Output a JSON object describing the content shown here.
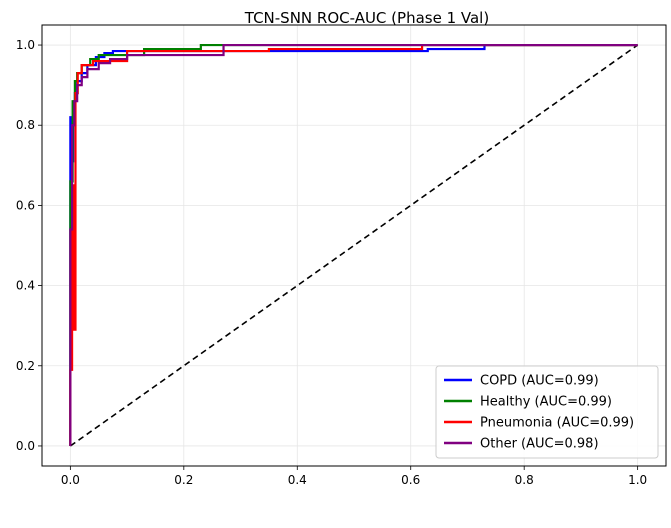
{
  "chart_data": {
    "type": "line",
    "title": "TCN-SNN ROC-AUC (Phase 1 Val)",
    "xlabel": "",
    "ylabel": "",
    "xlim": [
      -0.05,
      1.05
    ],
    "ylim": [
      -0.05,
      1.05
    ],
    "grid": true,
    "legend_position": "bottom-right",
    "x_ticks": [
      0.0,
      0.2,
      0.4,
      0.6,
      0.8,
      1.0
    ],
    "y_ticks": [
      0.0,
      0.2,
      0.4,
      0.6,
      0.8,
      1.0
    ],
    "x_tick_labels": [
      "0.0",
      "0.2",
      "0.4",
      "0.6",
      "0.8",
      "1.0"
    ],
    "y_tick_labels": [
      "0.0",
      "0.2",
      "0.4",
      "0.6",
      "0.8",
      "1.0"
    ],
    "series": [
      {
        "name": "COPD (AUC=0.99)",
        "color": "#0000ff",
        "x": [
          0,
          0,
          0.003,
          0.003,
          0.005,
          0.005,
          0.008,
          0.008,
          0.012,
          0.012,
          0.02,
          0.02,
          0.03,
          0.03,
          0.045,
          0.045,
          0.06,
          0.06,
          0.075,
          0.075,
          0.63,
          0.63,
          0.73,
          0.73,
          1.0
        ],
        "y": [
          0,
          0.82,
          0.82,
          0.71,
          0.71,
          0.83,
          0.83,
          0.88,
          0.88,
          0.91,
          0.91,
          0.93,
          0.93,
          0.95,
          0.95,
          0.97,
          0.97,
          0.98,
          0.98,
          0.985,
          0.985,
          0.99,
          0.99,
          1.0,
          1.0
        ]
      },
      {
        "name": "Healthy (AUC=0.99)",
        "color": "#008000",
        "x": [
          0,
          0,
          0.004,
          0.004,
          0.008,
          0.008,
          0.012,
          0.012,
          0.02,
          0.02,
          0.035,
          0.035,
          0.05,
          0.05,
          0.13,
          0.13,
          0.23,
          0.23,
          1.0
        ],
        "y": [
          0,
          0.66,
          0.66,
          0.86,
          0.86,
          0.91,
          0.91,
          0.93,
          0.93,
          0.95,
          0.95,
          0.965,
          0.965,
          0.975,
          0.975,
          0.99,
          0.99,
          1.0,
          1.0
        ]
      },
      {
        "name": "Pneumonia (AUC=0.99)",
        "color": "#ff0000",
        "x": [
          0,
          0,
          0.003,
          0.003,
          0.006,
          0.006,
          0.009,
          0.009,
          0.013,
          0.013,
          0.02,
          0.02,
          0.04,
          0.04,
          0.1,
          0.1,
          0.35,
          0.35,
          0.62,
          0.62,
          1.0
        ],
        "y": [
          0,
          0.19,
          0.19,
          0.65,
          0.65,
          0.29,
          0.29,
          0.88,
          0.88,
          0.93,
          0.93,
          0.95,
          0.95,
          0.96,
          0.96,
          0.985,
          0.985,
          0.99,
          0.99,
          1.0,
          1.0
        ]
      },
      {
        "name": "Other (AUC=0.98)",
        "color": "#800080",
        "x": [
          0,
          0,
          0.003,
          0.003,
          0.007,
          0.007,
          0.012,
          0.012,
          0.02,
          0.02,
          0.03,
          0.03,
          0.05,
          0.05,
          0.07,
          0.07,
          0.1,
          0.1,
          0.27,
          0.27,
          1.0
        ],
        "y": [
          0,
          0.54,
          0.54,
          0.8,
          0.8,
          0.86,
          0.86,
          0.9,
          0.9,
          0.92,
          0.92,
          0.94,
          0.94,
          0.955,
          0.955,
          0.965,
          0.965,
          0.975,
          0.975,
          1.0,
          1.0
        ]
      }
    ],
    "reference_line": {
      "name": "chance",
      "color": "#000000",
      "style": "dashed",
      "x": [
        0,
        1
      ],
      "y": [
        0,
        1
      ]
    }
  }
}
